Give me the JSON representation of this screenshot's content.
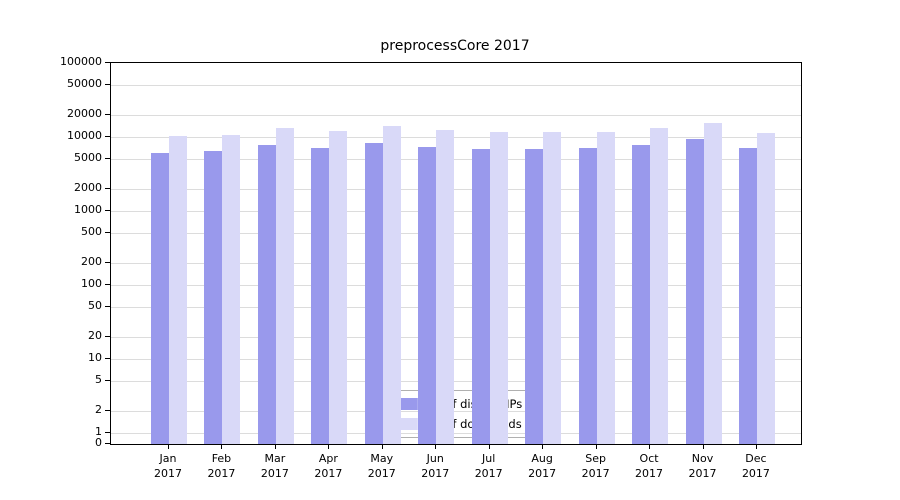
{
  "chart_data": {
    "type": "bar",
    "title": "preprocessCore 2017",
    "year": "2017",
    "months": [
      "Jan",
      "Feb",
      "Mar",
      "Apr",
      "May",
      "Jun",
      "Jul",
      "Aug",
      "Sep",
      "Oct",
      "Nov",
      "Dec"
    ],
    "series": [
      {
        "name": "Nb of distinct IPs",
        "color": "#9999ec",
        "values": [
          6000,
          6500,
          7900,
          7200,
          8400,
          7400,
          6900,
          6900,
          7100,
          7700,
          9300,
          7100
        ]
      },
      {
        "name": "Nb of downloads",
        "color": "#d9d9f8",
        "values": [
          10400,
          10800,
          13200,
          12100,
          14200,
          12300,
          11600,
          11600,
          11600,
          13100,
          15600,
          11300
        ]
      }
    ],
    "yticks": [
      0,
      1,
      2,
      5,
      10,
      20,
      50,
      100,
      200,
      500,
      1000,
      2000,
      5000,
      10000,
      20000,
      50000,
      100000
    ],
    "yscale": "log",
    "ylim": [
      0,
      100000
    ],
    "grid": true,
    "legend_position": "lower center"
  }
}
